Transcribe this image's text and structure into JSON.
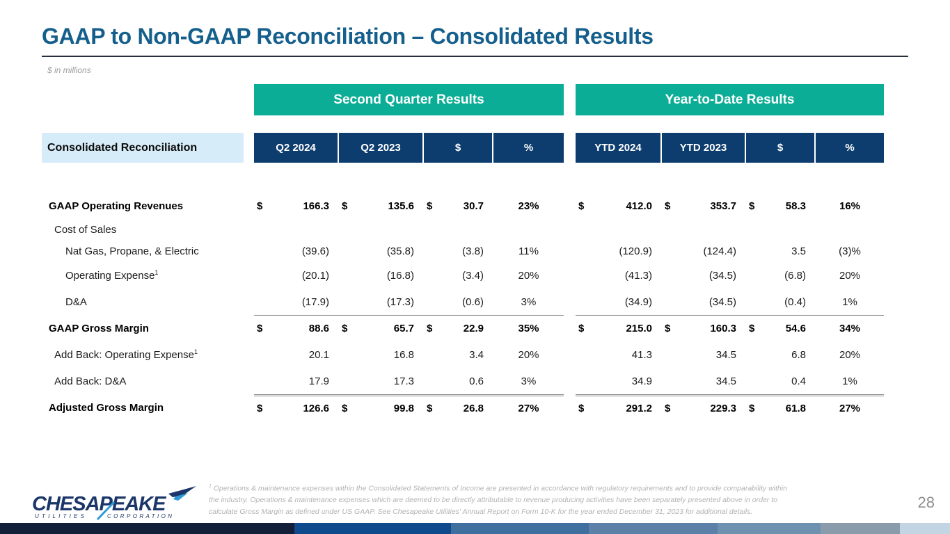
{
  "slide": {
    "title": "GAAP to Non-GAAP Reconciliation – Consolidated Results",
    "units_note": "$ in millions",
    "page_number": "28"
  },
  "table": {
    "label_header": "Consolidated Reconciliation",
    "groups": [
      {
        "title": "Second Quarter Results",
        "columns": [
          "Q2 2024",
          "Q2 2023",
          "$",
          "%"
        ]
      },
      {
        "title": "Year-to-Date Results",
        "columns": [
          "YTD 2024",
          "YTD 2023",
          "$",
          "%"
        ]
      }
    ],
    "rows": [
      {
        "label": "GAAP Operating Revenues",
        "indent": 0,
        "bold": true,
        "dollar": true,
        "q2": [
          "166.3",
          "135.6",
          "30.7",
          "23%"
        ],
        "ytd": [
          "412.0",
          "353.7",
          "58.3",
          "16%"
        ]
      },
      {
        "label": "Cost of Sales",
        "indent": 1,
        "bold": false,
        "dollar": false,
        "q2": null,
        "ytd": null
      },
      {
        "label": "Nat Gas, Propane, & Electric",
        "indent": 2,
        "bold": false,
        "dollar": false,
        "q2": [
          "(39.6)",
          "(35.8)",
          "(3.8)",
          "11%"
        ],
        "ytd": [
          "(120.9)",
          "(124.4)",
          "3.5",
          "(3)%"
        ]
      },
      {
        "label": "Operating Expense",
        "sup": "1",
        "indent": 2,
        "bold": false,
        "dollar": false,
        "q2": [
          "(20.1)",
          "(16.8)",
          "(3.4)",
          "20%"
        ],
        "ytd": [
          "(41.3)",
          "(34.5)",
          "(6.8)",
          "20%"
        ]
      },
      {
        "label": "D&A",
        "indent": 2,
        "bold": false,
        "dollar": false,
        "q2": [
          "(17.9)",
          "(17.3)",
          "(0.6)",
          "3%"
        ],
        "ytd": [
          "(34.9)",
          "(34.5)",
          "(0.4)",
          "1%"
        ]
      },
      {
        "label": "GAAP Gross Margin",
        "indent": 0,
        "bold": true,
        "dollar": true,
        "rule_above": "single",
        "q2": [
          "88.6",
          "65.7",
          "22.9",
          "35%"
        ],
        "ytd": [
          "215.0",
          "160.3",
          "54.6",
          "34%"
        ]
      },
      {
        "label": "Add Back: Operating Expense",
        "sup": "1",
        "indent": 1,
        "bold": false,
        "dollar": false,
        "q2": [
          "20.1",
          "16.8",
          "3.4",
          "20%"
        ],
        "ytd": [
          "41.3",
          "34.5",
          "6.8",
          "20%"
        ]
      },
      {
        "label": "Add Back: D&A",
        "indent": 1,
        "bold": false,
        "dollar": false,
        "q2": [
          "17.9",
          "17.3",
          "0.6",
          "3%"
        ],
        "ytd": [
          "34.9",
          "34.5",
          "0.4",
          "1%"
        ]
      },
      {
        "label": "Adjusted Gross Margin",
        "indent": 0,
        "bold": true,
        "dollar": true,
        "rule_above": "double",
        "q2": [
          "126.6",
          "99.8",
          "26.8",
          "27%"
        ],
        "ytd": [
          "291.2",
          "229.3",
          "61.8",
          "27%"
        ]
      }
    ]
  },
  "footer": {
    "logo_name": "CHESAPEAKE",
    "logo_subtitle_left": "UTILITIES",
    "logo_subtitle_right": "CORPORATION",
    "footnote_sup": "1",
    "footnote": " Operations & maintenance expenses within the Consolidated Statements of Income are presented in accordance with regulatory requirements and to provide comparability within the industry. Operations & maintenance expenses which are deemed to be directly attributable to revenue producing activities have been separately presented above in order to calculate Gross Margin as defined under US GAAP. See Chesapeake Utilities' Annual Report on Form 10-K for the year ended December 31, 2023 for additional details."
  },
  "colors": {
    "title": "#155F8C",
    "band_teal": "#0CAD96",
    "header_navy": "#0C3D6E",
    "label_bg": "#D7ECF9",
    "rule_gray": "#8C8C8C",
    "bottom_bar_segments": [
      "#131F38",
      "#0E4A8C",
      "#3E6F9F",
      "#5C80A7",
      "#6F91B0",
      "#8A9CAB",
      "#C3D4E3"
    ]
  }
}
